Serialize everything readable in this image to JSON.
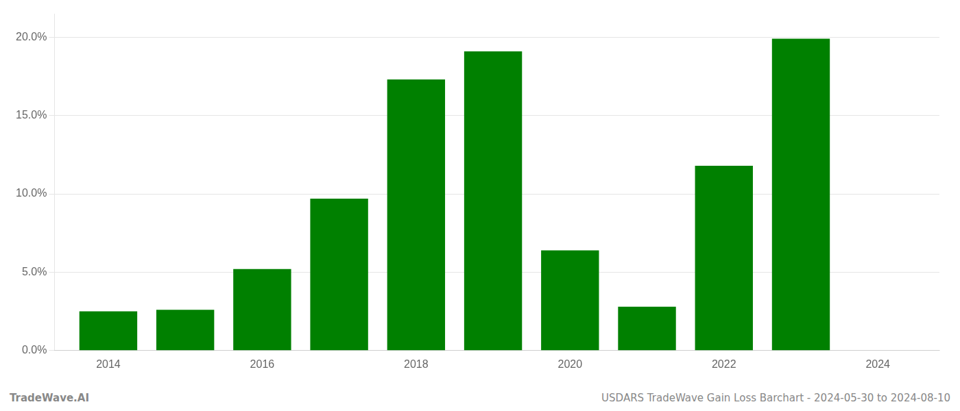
{
  "chart_data": {
    "type": "bar",
    "x": [
      2014,
      2015,
      2016,
      2017,
      2018,
      2019,
      2020,
      2021,
      2022,
      2023,
      2024
    ],
    "values": [
      0.025,
      0.026,
      0.052,
      0.097,
      0.173,
      0.191,
      0.064,
      0.028,
      0.118,
      0.199,
      null
    ],
    "color": "#008000",
    "xlim": [
      2013.3,
      2024.8
    ],
    "xticks": [
      2014,
      2016,
      2018,
      2020,
      2022,
      2024
    ],
    "ylim": [
      0,
      0.215
    ],
    "yticks": [
      {
        "value": 0.0,
        "label": "0.0%"
      },
      {
        "value": 0.05,
        "label": "5.0%"
      },
      {
        "value": 0.1,
        "label": "10.0%"
      },
      {
        "value": 0.15,
        "label": "15.0%"
      },
      {
        "value": 0.2,
        "label": "20.0%"
      }
    ],
    "grid": true,
    "annotations": [
      "TradeWave.AI",
      "USDARS TradeWave Gain Loss Barchart - 2024-05-30 to 2024-08-10"
    ]
  }
}
